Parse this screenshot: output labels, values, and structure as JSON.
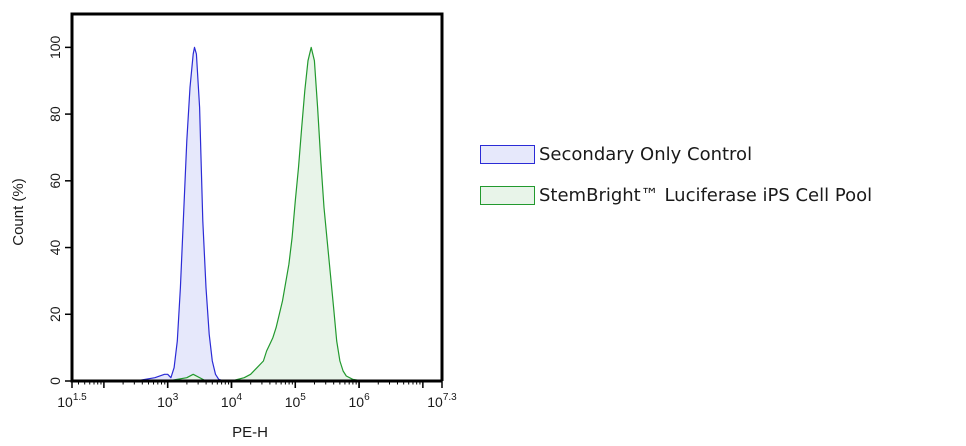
{
  "chart_data": {
    "type": "area",
    "xlabel": "PE-H",
    "ylabel": "Count (%)",
    "xscale": "log10",
    "xlim": [
      1.5,
      7.3
    ],
    "ylim": [
      0,
      110
    ],
    "x_ticks": [
      {
        "exp": 1.5,
        "base": "10",
        "sup": "1.5"
      },
      {
        "exp": 3,
        "base": "10",
        "sup": "3"
      },
      {
        "exp": 4,
        "base": "10",
        "sup": "4"
      },
      {
        "exp": 5,
        "base": "10",
        "sup": "5"
      },
      {
        "exp": 6,
        "base": "10",
        "sup": "6"
      },
      {
        "exp": 7.3,
        "base": "10",
        "sup": "7.3"
      }
    ],
    "y_ticks": [
      "0",
      "20",
      "40",
      "60",
      "80",
      "100"
    ],
    "legend_position": "right",
    "series": [
      {
        "name": "Secondary Only Control",
        "stroke": "#2b2bd6",
        "fill": "#e6e8fb",
        "x": [
          2.5,
          2.8,
          2.95,
          3.0,
          3.05,
          3.1,
          3.15,
          3.2,
          3.25,
          3.3,
          3.35,
          3.4,
          3.42,
          3.45,
          3.5,
          3.52,
          3.55,
          3.6,
          3.65,
          3.7,
          3.75,
          3.8,
          3.85,
          3.9,
          3.95,
          4.0,
          4.5,
          4.8,
          5.0,
          5.2,
          5.5
        ],
        "y": [
          0,
          1,
          2,
          2,
          1,
          4,
          12,
          28,
          50,
          72,
          88,
          98,
          100,
          98,
          82,
          68,
          48,
          28,
          14,
          6,
          2,
          0.5,
          0.2,
          0.1,
          0,
          0,
          0.2,
          0.5,
          1,
          0.5,
          0
        ]
      },
      {
        "name": "StemBright™ Luciferase iPS Cell Pool",
        "stroke": "#22992e",
        "fill": "#e8f4e9",
        "x": [
          3.0,
          3.3,
          3.4,
          3.6,
          4.0,
          4.2,
          4.3,
          4.4,
          4.5,
          4.55,
          4.6,
          4.65,
          4.7,
          4.8,
          4.9,
          4.95,
          5.0,
          5.05,
          5.1,
          5.15,
          5.2,
          5.25,
          5.3,
          5.35,
          5.4,
          5.45,
          5.5,
          5.55,
          5.6,
          5.65,
          5.7,
          5.75,
          5.8,
          5.9,
          6.0,
          6.2
        ],
        "y": [
          0,
          1,
          2,
          0,
          0,
          1,
          2,
          4,
          6,
          9,
          11,
          13,
          16,
          24,
          35,
          43,
          54,
          64,
          76,
          87,
          96,
          100,
          96,
          82,
          66,
          52,
          42,
          32,
          22,
          12,
          6,
          3,
          1.5,
          0.5,
          0.2,
          0
        ]
      }
    ]
  }
}
